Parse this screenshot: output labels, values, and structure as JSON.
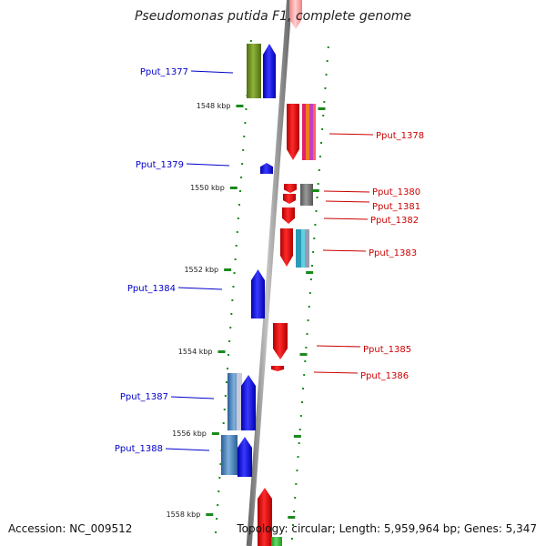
{
  "title": "Pseudomonas putida F1, complete genome",
  "footer": {
    "accession": "Accession: NC_009512",
    "topology": "Topology: circular; Length: 5,959,964 bp; Genes: 5,347"
  },
  "colors": {
    "forward_label": "#0000cc",
    "reverse_label": "#cc0000",
    "backbone": "#9a9a9a",
    "tick": "#1a8a1a"
  },
  "scale_labels": [
    {
      "kbp": 1548,
      "text": "1548 kbp"
    },
    {
      "kbp": 1550,
      "text": "1550 kbp"
    },
    {
      "kbp": 1552,
      "text": "1552 kbp"
    },
    {
      "kbp": 1554,
      "text": "1554 kbp"
    },
    {
      "kbp": 1556,
      "text": "1556 kbp"
    },
    {
      "kbp": 1558,
      "text": "1558 kbp"
    }
  ],
  "genes": [
    {
      "name": "Pput_1377",
      "strand": "+"
    },
    {
      "name": "Pput_1378",
      "strand": "-"
    },
    {
      "name": "Pput_1379",
      "strand": "+"
    },
    {
      "name": "Pput_1380",
      "strand": "-"
    },
    {
      "name": "Pput_1381",
      "strand": "-"
    },
    {
      "name": "Pput_1382",
      "strand": "-"
    },
    {
      "name": "Pput_1383",
      "strand": "-"
    },
    {
      "name": "Pput_1384",
      "strand": "+"
    },
    {
      "name": "Pput_1385",
      "strand": "-"
    },
    {
      "name": "Pput_1386",
      "strand": "-"
    },
    {
      "name": "Pput_1387",
      "strand": "+"
    },
    {
      "name": "Pput_1388",
      "strand": "+"
    }
  ]
}
